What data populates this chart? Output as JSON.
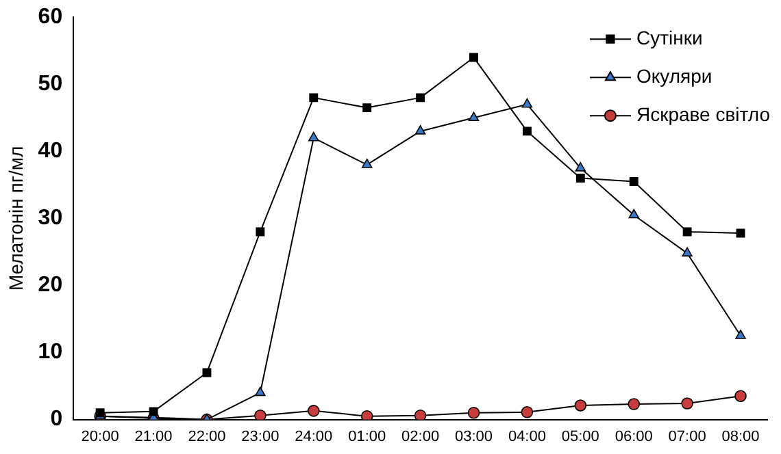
{
  "chart_data": {
    "type": "line",
    "ylabel": "Мелатонін пг/мл",
    "categories": [
      "20:00",
      "21:00",
      "22:00",
      "23:00",
      "24:00",
      "01:00",
      "02:00",
      "03:00",
      "04:00",
      "05:00",
      "06:00",
      "07:00",
      "08:00"
    ],
    "series": [
      {
        "name": "Сутінки",
        "color": "#000000",
        "marker": "square",
        "values": [
          1,
          1.2,
          7,
          28,
          48,
          46.5,
          48,
          54,
          43,
          36,
          35.5,
          28,
          27.8
        ]
      },
      {
        "name": "Окуляри",
        "color": "#3a78c8",
        "marker": "triangle",
        "values": [
          0.5,
          0.3,
          0,
          4,
          42,
          38,
          43,
          45,
          47,
          37.5,
          30.5,
          24.8,
          12.5
        ]
      },
      {
        "name": "Яскраве світло",
        "color": "#c83c3c",
        "marker": "circle",
        "values": [
          0.5,
          0.2,
          0,
          0.6,
          1.3,
          0.5,
          0.6,
          1,
          1.1,
          2.1,
          2.3,
          2.4,
          3.5
        ]
      }
    ],
    "ylim": [
      0,
      60
    ],
    "yticks": [
      0,
      10,
      20,
      30,
      40,
      50,
      60
    ],
    "grid": false,
    "legend": "top right"
  }
}
